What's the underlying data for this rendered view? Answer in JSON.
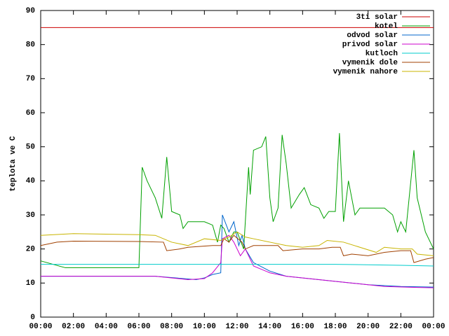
{
  "chart_data": {
    "type": "line",
    "ylabel": "teplota ve C",
    "xlim": [
      0,
      24
    ],
    "ylim": [
      0,
      90
    ],
    "xticks": [
      {
        "value": 0,
        "label": "00:00"
      },
      {
        "value": 2,
        "label": "02:00"
      },
      {
        "value": 4,
        "label": "04:00"
      },
      {
        "value": 6,
        "label": "06:00"
      },
      {
        "value": 8,
        "label": "08:00"
      },
      {
        "value": 10,
        "label": "10:00"
      },
      {
        "value": 12,
        "label": "12:00"
      },
      {
        "value": 14,
        "label": "14:00"
      },
      {
        "value": 16,
        "label": "16:00"
      },
      {
        "value": 18,
        "label": "18:00"
      },
      {
        "value": 20,
        "label": "20:00"
      },
      {
        "value": 22,
        "label": "22:00"
      },
      {
        "value": 24,
        "label": "00:00"
      }
    ],
    "yticks": [
      0,
      10,
      20,
      30,
      40,
      50,
      60,
      70,
      80,
      90
    ],
    "legend": "top-right",
    "series": [
      {
        "name": "3ti solar",
        "color": "#cc0000",
        "x": [
          0,
          24
        ],
        "values": [
          85,
          85
        ]
      },
      {
        "name": "kotel",
        "color": "#00a000",
        "x": [
          0,
          1.5,
          6,
          6.2,
          6.5,
          7,
          7.4,
          7.7,
          8,
          8.5,
          8.7,
          9,
          10,
          10.5,
          10.8,
          11,
          11.2,
          11.5,
          11.8,
          12,
          12.4,
          12.7,
          12.8,
          13,
          13.5,
          13.75,
          14,
          14.2,
          14.5,
          14.75,
          15,
          15.3,
          15.8,
          16.1,
          16.5,
          17,
          17.3,
          17.6,
          18,
          18.25,
          18.5,
          18.8,
          19.2,
          19.5,
          20.5,
          21,
          21.5,
          21.8,
          22,
          22.3,
          22.8,
          23,
          23.5,
          24
        ],
        "values": [
          16.5,
          14.5,
          14.5,
          44,
          40,
          35,
          29,
          47,
          31,
          30,
          26,
          28,
          28,
          27,
          22,
          27,
          26,
          22,
          25,
          25,
          20,
          44,
          36,
          49,
          50,
          53,
          35,
          28,
          32,
          53.5,
          45,
          32,
          36,
          38,
          33,
          32,
          29,
          31,
          31,
          54,
          28,
          40,
          30,
          32,
          32,
          32,
          30,
          25,
          28,
          25,
          49,
          35,
          25,
          20
        ]
      },
      {
        "name": "odvod solar",
        "color": "#0066cc",
        "x": [
          0,
          7,
          9.5,
          10,
          10.5,
          11,
          11.1,
          11.5,
          11.8,
          12.1,
          12.3,
          12.5,
          13,
          14,
          15,
          17,
          19,
          20,
          22,
          24
        ],
        "values": [
          12,
          12,
          11,
          11.5,
          12.5,
          13,
          30,
          25,
          28,
          21,
          24,
          20,
          16,
          13.5,
          12,
          11,
          10,
          9.5,
          9,
          8.8
        ]
      },
      {
        "name": "privod solar",
        "color": "#cc00cc",
        "x": [
          0,
          7,
          9,
          10,
          10.5,
          11,
          11.1,
          11.5,
          11.8,
          12.2,
          12.5,
          13,
          14,
          15,
          17,
          19,
          21,
          23,
          24
        ],
        "values": [
          12,
          12,
          11,
          11.3,
          13,
          16,
          23,
          24,
          22,
          18,
          20,
          15,
          13,
          12,
          11,
          10,
          9,
          8.7,
          8.6
        ]
      },
      {
        "name": "kutloch",
        "color": "#00cccc",
        "x": [
          0,
          10,
          14,
          18,
          22,
          24
        ],
        "values": [
          15.5,
          15.5,
          15.5,
          15.5,
          15.2,
          15
        ]
      },
      {
        "name": "vymenik dole",
        "color": "#a04000",
        "x": [
          0,
          1,
          2,
          6,
          7.5,
          7.7,
          8.5,
          9,
          10.5,
          11,
          11.2,
          11.5,
          11.8,
          12.3,
          12.5,
          13,
          14.5,
          14.8,
          16,
          17,
          17.8,
          18.3,
          18.5,
          19,
          20,
          21,
          22,
          22.6,
          22.8,
          23.5,
          24
        ],
        "values": [
          21,
          22,
          22.3,
          22.2,
          22,
          19.5,
          20,
          20.5,
          21,
          21,
          23,
          22,
          24,
          22,
          20,
          21,
          21,
          19.5,
          20,
          20,
          20.5,
          20.5,
          18,
          18.5,
          18,
          19,
          19.5,
          19.5,
          16,
          17,
          17.5
        ]
      },
      {
        "name": "vymenik nahore",
        "color": "#c8b400",
        "x": [
          0,
          2,
          6,
          7,
          8,
          9,
          10,
          11,
          11.5,
          12,
          12.5,
          13,
          14,
          15,
          16,
          17,
          17.5,
          18.5,
          19.5,
          20.5,
          21,
          22,
          22.7,
          23,
          24
        ],
        "values": [
          24,
          24.5,
          24.2,
          24,
          22,
          21,
          23,
          22.5,
          23.5,
          25,
          23.5,
          23,
          22,
          21,
          20.5,
          21,
          22.5,
          22,
          20.5,
          19,
          20.5,
          20,
          20,
          18.5,
          18
        ]
      }
    ]
  }
}
